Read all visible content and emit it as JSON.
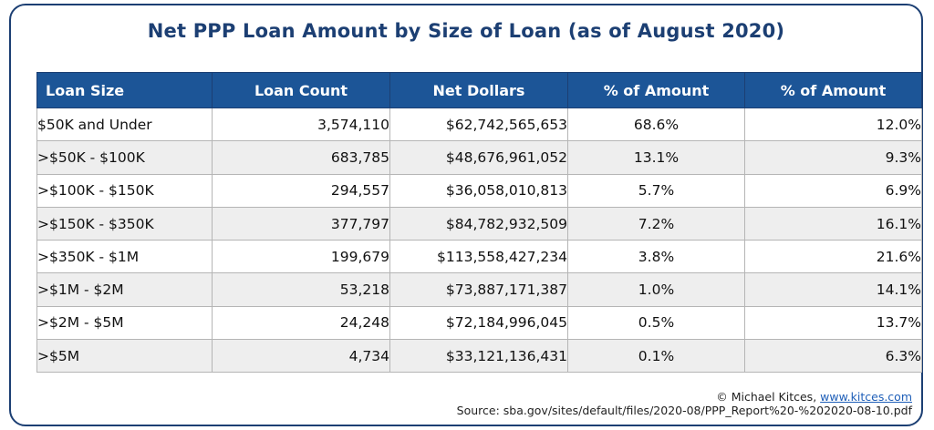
{
  "title": "Net PPP Loan Amount by Size of Loan (as of August 2020)",
  "table": {
    "headers": [
      "Loan Size",
      "Loan Count",
      "Net Dollars",
      "% of Amount",
      "% of Amount"
    ],
    "rows": [
      [
        "$50K and Under",
        "3,574,110",
        "$62,742,565,653",
        "68.6%",
        "12.0%"
      ],
      [
        ">$50K - $100K",
        "683,785",
        "$48,676,961,052",
        "13.1%",
        "9.3%"
      ],
      [
        ">$100K - $150K",
        "294,557",
        "$36,058,010,813",
        "5.7%",
        "6.9%"
      ],
      [
        ">$150K - $350K",
        "377,797",
        "$84,782,932,509",
        "7.2%",
        "16.1%"
      ],
      [
        ">$350K - $1M",
        "199,679",
        "$113,558,427,234",
        "3.8%",
        "21.6%"
      ],
      [
        ">$1M - $2M",
        "53,218",
        "$73,887,171,387",
        "1.0%",
        "14.1%"
      ],
      [
        ">$2M - $5M",
        "24,248",
        "$72,184,996,045",
        "0.5%",
        "13.7%"
      ],
      [
        ">$5M",
        "4,734",
        "$33,121,136,431",
        "0.1%",
        "6.3%"
      ]
    ]
  },
  "footer": {
    "copyright_prefix": "© Michael Kitces, ",
    "link_text": "www.kitces.com",
    "source": "Source: sba.gov/sites/default/files/2020-08/PPP_Report%20-%202020-08-10.pdf"
  },
  "colors": {
    "header_bg": "#1c5597",
    "title": "#1c3f73",
    "stripe": "#eeeeee",
    "link": "#1f5fb8"
  }
}
